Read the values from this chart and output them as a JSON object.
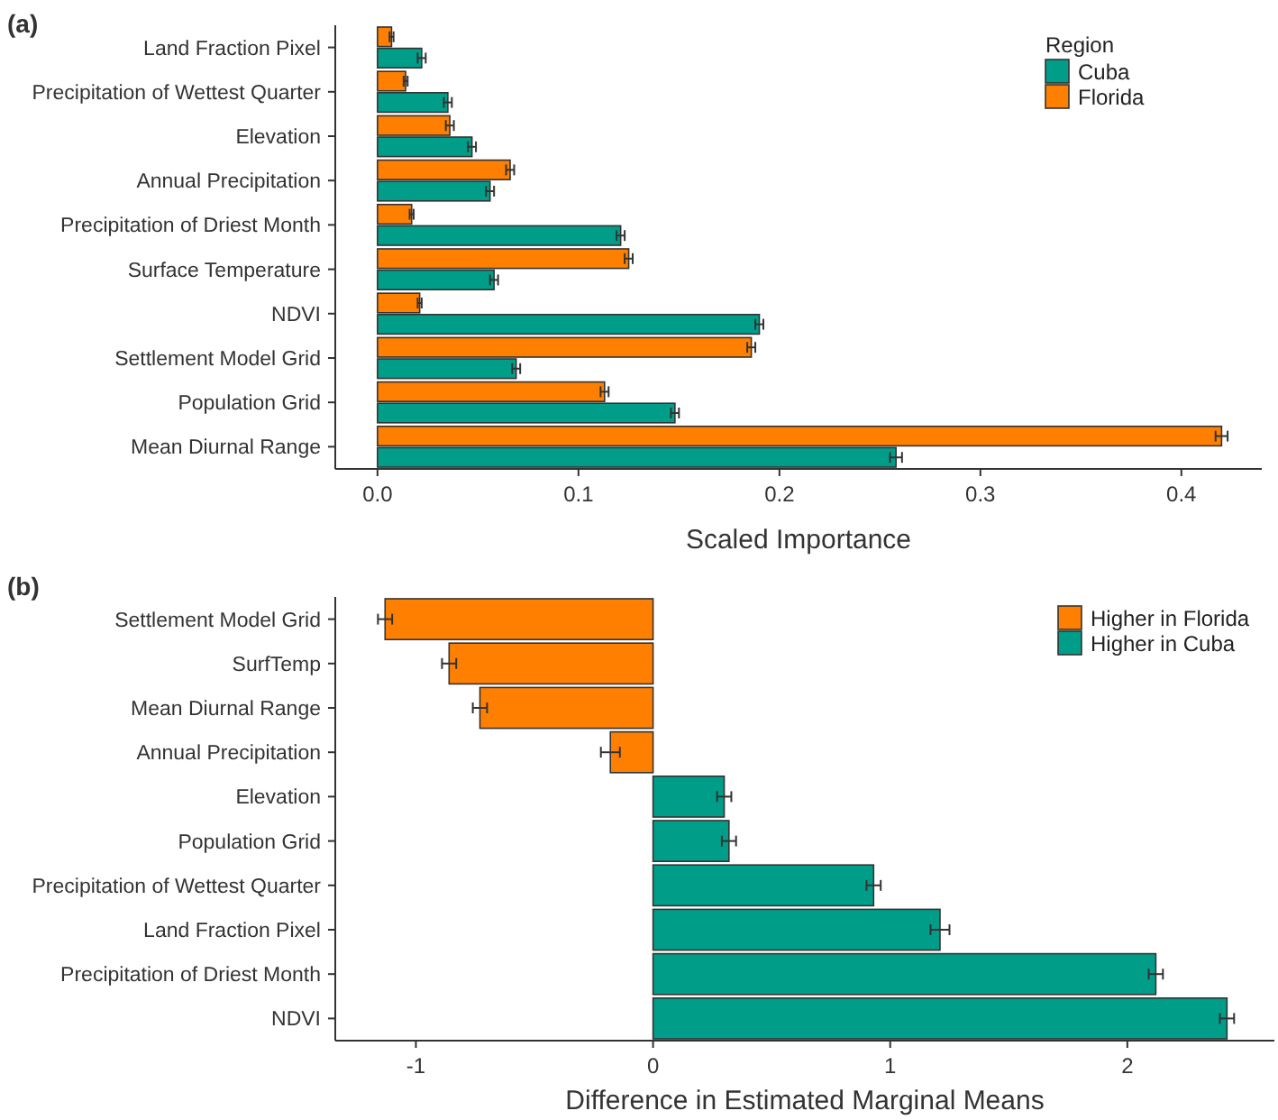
{
  "chart_data": [
    {
      "type": "bar",
      "title": "(a)",
      "orientation": "horizontal",
      "xlabel": "Scaled Importance",
      "legend_title": "Region",
      "legend": "top right",
      "categories": [
        "Land Fraction Pixel",
        "Precipitation of Wettest Quarter",
        "Elevation",
        "Annual Precipitation",
        "Precipitation of Driest Month",
        "Surface Temperature",
        "NDVI",
        "Settlement Model Grid",
        "Population Grid",
        "Mean Diurnal Range"
      ],
      "series": [
        {
          "name": "Cuba",
          "color": "#009e89",
          "values": [
            0.022,
            0.035,
            0.047,
            0.056,
            0.121,
            0.058,
            0.19,
            0.069,
            0.148,
            0.258
          ],
          "errors": [
            0.002,
            0.002,
            0.002,
            0.002,
            0.002,
            0.002,
            0.002,
            0.002,
            0.002,
            0.003
          ]
        },
        {
          "name": "Florida",
          "color": "#ff8000",
          "values": [
            0.007,
            0.014,
            0.036,
            0.066,
            0.017,
            0.125,
            0.021,
            0.186,
            0.113,
            0.42
          ],
          "errors": [
            0.001,
            0.001,
            0.002,
            0.002,
            0.001,
            0.002,
            0.001,
            0.002,
            0.002,
            0.003
          ]
        }
      ],
      "xlim": [
        -0.021,
        0.44
      ],
      "xticks": [
        {
          "value": 0,
          "label": "0.0"
        },
        0.1,
        0.2,
        0.3,
        0.4
      ]
    },
    {
      "type": "bar",
      "title": "(b)",
      "orientation": "horizontal",
      "stacked": true,
      "xlabel": "Difference in Estimated Marginal Means",
      "legend": "top right",
      "categories": [
        "Settlement Model Grid",
        "SurfTemp",
        "Mean Diurnal Range",
        "Annual Precipitation",
        "Elevation",
        "Population Grid",
        "Precipitation of Wettest Quarter",
        "Land Fraction Pixel",
        "Precipitation of Driest Month",
        "NDVI"
      ],
      "series": [
        {
          "name": "Higher in Florida",
          "color": "#ff8000",
          "values": [
            -1.13,
            -0.86,
            -0.73,
            -0.18,
            null,
            null,
            null,
            null,
            null,
            null
          ],
          "errors": [
            0.03,
            0.03,
            0.03,
            0.04,
            null,
            null,
            null,
            null,
            null,
            null
          ]
        },
        {
          "name": "Higher in Cuba",
          "color": "#009e89",
          "values": [
            null,
            null,
            null,
            null,
            0.3,
            0.32,
            0.93,
            1.21,
            2.12,
            2.42
          ],
          "errors": [
            null,
            null,
            null,
            null,
            0.03,
            0.03,
            0.03,
            0.04,
            0.03,
            0.03
          ]
        }
      ],
      "xlim": [
        -1.34,
        2.62
      ],
      "xticks": [
        -1,
        0,
        1,
        2
      ]
    }
  ]
}
